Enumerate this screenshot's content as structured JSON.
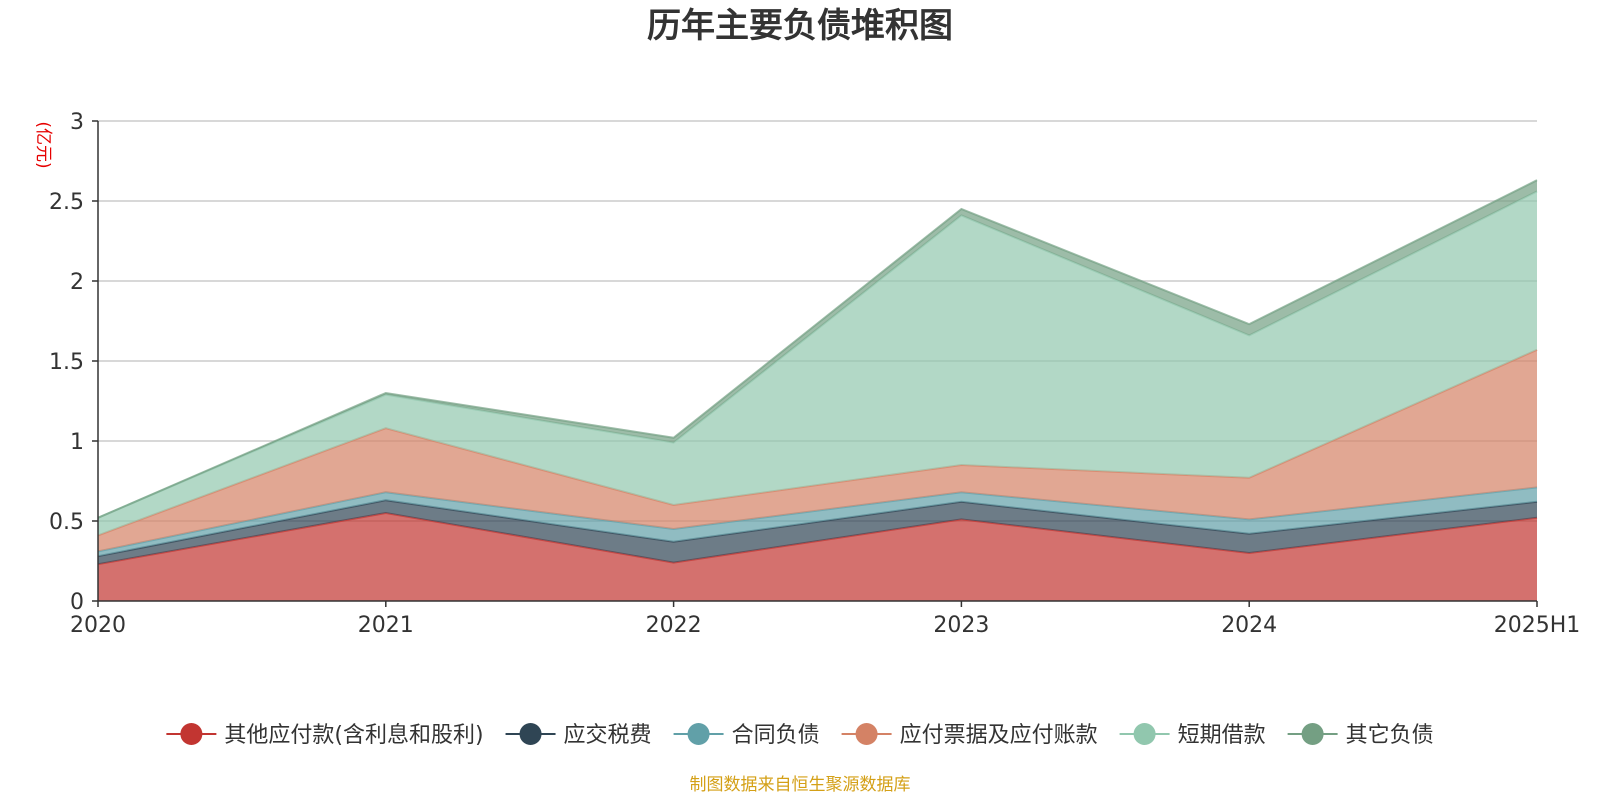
{
  "chart_data": {
    "type": "area",
    "stacked": true,
    "title": "历年主要负债堆积图",
    "unit_label": "(亿元)",
    "source": "制图数据来自恒生聚源数据库",
    "categories": [
      "2020",
      "2021",
      "2022",
      "2023",
      "2024",
      "2025H1"
    ],
    "ylim": [
      0,
      3
    ],
    "yticks": [
      0,
      0.5,
      1,
      1.5,
      2,
      2.5,
      3
    ],
    "ytick_labels": [
      "0",
      "0.5",
      "1",
      "1.5",
      "2",
      "2.5",
      "3"
    ],
    "grid": true,
    "legend_position": "bottom-center",
    "series": [
      {
        "name": "其他应付款(含利息和股利)",
        "color": "#c23531",
        "values": [
          0.23,
          0.55,
          0.24,
          0.51,
          0.3,
          0.52
        ]
      },
      {
        "name": "应交税费",
        "color": "#2f4554",
        "values": [
          0.05,
          0.08,
          0.13,
          0.11,
          0.12,
          0.1
        ]
      },
      {
        "name": "合同负债",
        "color": "#61a0a8",
        "values": [
          0.03,
          0.05,
          0.08,
          0.06,
          0.09,
          0.09
        ]
      },
      {
        "name": "应付票据及应付账款",
        "color": "#d48265",
        "values": [
          0.1,
          0.4,
          0.15,
          0.17,
          0.26,
          0.86
        ]
      },
      {
        "name": "短期借款",
        "color": "#91c7ae",
        "values": [
          0.11,
          0.21,
          0.39,
          1.56,
          0.89,
          0.99
        ]
      },
      {
        "name": "其它负债",
        "color": "#749f83",
        "values": [
          0.0,
          0.01,
          0.03,
          0.04,
          0.07,
          0.07
        ]
      }
    ]
  }
}
